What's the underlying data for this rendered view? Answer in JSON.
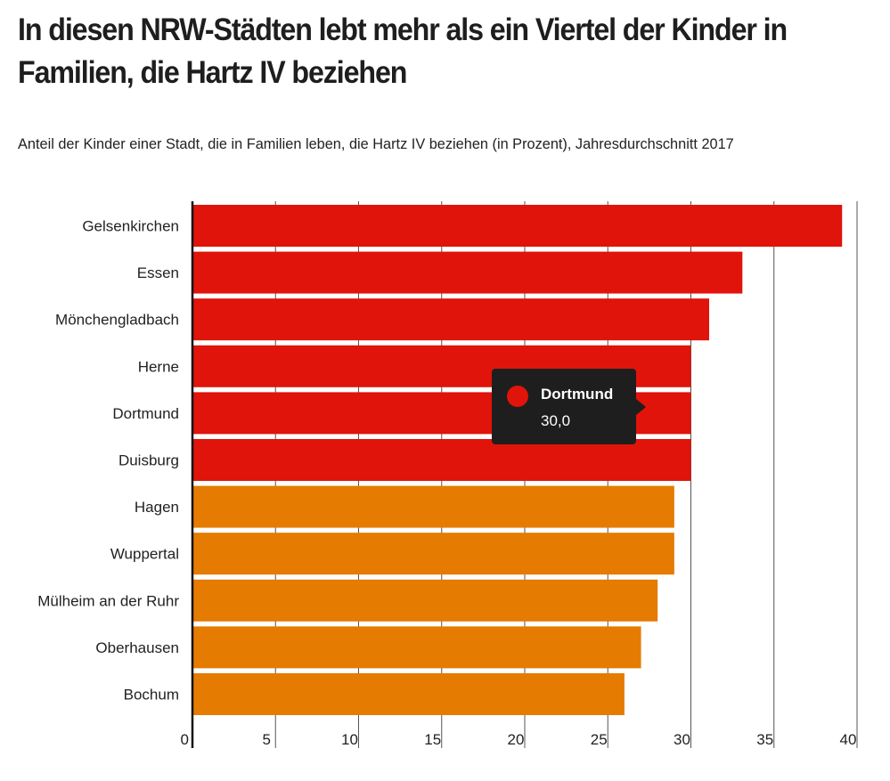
{
  "title": "In diesen NRW-Städten lebt mehr als ein Viertel der Kinder in Familien, die Hartz IV beziehen",
  "subtitle": "Anteil der Kinder einer Stadt, die in Familien leben, die Hartz IV beziehen (in Prozent), Jahresdurchschnitt 2017",
  "colors": {
    "above_30": "#e0140a",
    "below_30": "#e57b00",
    "grid": "#555555",
    "axis": "#111111",
    "tooltip_bg": "#1e1e1e"
  },
  "tooltip": {
    "name": "Dortmund",
    "value": "30,0",
    "dot_color": "#e0140a"
  },
  "chart_data": {
    "type": "bar",
    "orientation": "horizontal",
    "title": "In diesen NRW-Städten lebt mehr als ein Viertel der Kinder in Familien, die Hartz IV beziehen",
    "subtitle": "Anteil der Kinder einer Stadt, die in Familien leben, die Hartz IV beziehen (in Prozent), Jahresdurchschnitt 2017",
    "xlabel": "",
    "ylabel": "",
    "xlim": [
      0,
      40
    ],
    "xticks": [
      0,
      5,
      10,
      15,
      20,
      25,
      30,
      35,
      40
    ],
    "grid": true,
    "categories": [
      "Gelsenkirchen",
      "Essen",
      "Mönchengladbach",
      "Herne",
      "Dortmund",
      "Duisburg",
      "Hagen",
      "Wuppertal",
      "Mülheim an der Ruhr",
      "Oberhausen",
      "Bochum"
    ],
    "values": [
      39.1,
      33.1,
      31.1,
      30.0,
      30.0,
      30.0,
      29.0,
      29.0,
      28.0,
      27.0,
      26.0
    ],
    "bar_colors": [
      "#e0140a",
      "#e0140a",
      "#e0140a",
      "#e0140a",
      "#e0140a",
      "#e0140a",
      "#e57b00",
      "#e57b00",
      "#e57b00",
      "#e57b00",
      "#e57b00"
    ]
  }
}
